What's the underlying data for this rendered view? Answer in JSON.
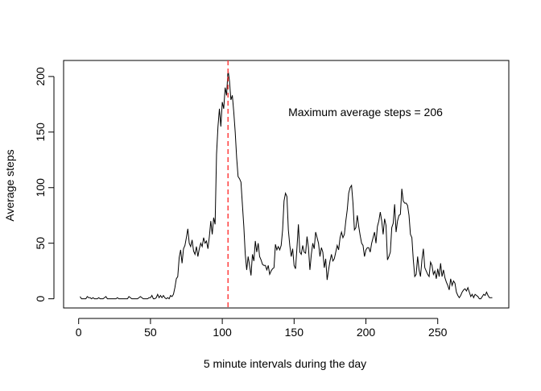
{
  "chart_data": {
    "type": "line",
    "x_label": "5 minute intervals during the day",
    "y_label": "Average steps",
    "annotation": "Maximum average steps = 206",
    "color": "#000000",
    "vline": {
      "x": 104,
      "color": "#ff4040"
    },
    "xlim": [
      -10.48,
      299.48
    ],
    "xticks": [
      0,
      50,
      100,
      150,
      200,
      250
    ],
    "ylim": [
      -8.25,
      214.42
    ],
    "yticks": [
      0,
      50,
      100,
      150,
      200
    ],
    "grid": false,
    "x": [
      1,
      2,
      3,
      4,
      5,
      6,
      7,
      8,
      9,
      10,
      11,
      12,
      13,
      14,
      15,
      16,
      17,
      18,
      19,
      20,
      21,
      22,
      23,
      24,
      25,
      26,
      27,
      28,
      29,
      30,
      31,
      32,
      33,
      34,
      35,
      36,
      37,
      38,
      39,
      40,
      41,
      42,
      43,
      44,
      45,
      46,
      47,
      48,
      49,
      50,
      51,
      52,
      53,
      54,
      55,
      56,
      57,
      58,
      59,
      60,
      61,
      62,
      63,
      64,
      65,
      66,
      67,
      68,
      69,
      70,
      71,
      72,
      73,
      74,
      75,
      76,
      77,
      78,
      79,
      80,
      81,
      82,
      83,
      84,
      85,
      86,
      87,
      88,
      89,
      90,
      91,
      92,
      93,
      94,
      95,
      96,
      97,
      98,
      99,
      100,
      101,
      102,
      103,
      104,
      105,
      106,
      107,
      108,
      109,
      110,
      111,
      112,
      113,
      114,
      115,
      116,
      117,
      118,
      119,
      120,
      121,
      122,
      123,
      124,
      125,
      126,
      127,
      128,
      129,
      130,
      131,
      132,
      133,
      134,
      135,
      136,
      137,
      138,
      139,
      140,
      141,
      142,
      143,
      144,
      145,
      146,
      147,
      148,
      149,
      150,
      151,
      152,
      153,
      154,
      155,
      156,
      157,
      158,
      159,
      160,
      161,
      162,
      163,
      164,
      165,
      166,
      167,
      168,
      169,
      170,
      171,
      172,
      173,
      174,
      175,
      176,
      177,
      178,
      179,
      180,
      181,
      182,
      183,
      184,
      185,
      186,
      187,
      188,
      189,
      190,
      191,
      192,
      193,
      194,
      195,
      196,
      197,
      198,
      199,
      200,
      201,
      202,
      203,
      204,
      205,
      206,
      207,
      208,
      209,
      210,
      211,
      212,
      213,
      214,
      215,
      216,
      217,
      218,
      219,
      220,
      221,
      222,
      223,
      224,
      225,
      226,
      227,
      228,
      229,
      230,
      231,
      232,
      233,
      234,
      235,
      236,
      237,
      238,
      239,
      240,
      241,
      242,
      243,
      244,
      245,
      246,
      247,
      248,
      249,
      250,
      251,
      252,
      253,
      254,
      255,
      256,
      257,
      258,
      259,
      260,
      261,
      262,
      263,
      264,
      265,
      266,
      267,
      268,
      269,
      270,
      271,
      272,
      273,
      274,
      275,
      276,
      277,
      278,
      279,
      280,
      281,
      282,
      283,
      284,
      285,
      286,
      287,
      288
    ],
    "values": [
      2,
      0,
      0,
      0,
      0,
      2,
      1,
      1,
      0,
      1,
      0,
      0,
      0,
      1,
      0,
      0,
      0,
      1,
      2,
      0,
      0,
      0,
      0,
      0,
      0,
      0,
      1,
      0,
      0,
      0,
      0,
      0,
      0,
      0,
      2,
      1,
      0,
      0,
      0,
      0,
      0,
      1,
      2,
      1,
      0,
      0,
      0,
      0,
      1,
      1,
      3,
      0,
      0,
      1,
      4,
      1,
      3,
      1,
      3,
      1,
      0,
      1,
      0,
      3,
      2,
      4,
      10,
      18,
      20,
      37,
      44,
      32,
      45,
      48,
      55,
      63,
      50,
      47,
      53,
      43,
      40,
      47,
      38,
      45,
      50,
      47,
      55,
      50,
      52,
      45,
      56,
      70,
      58,
      73,
      67,
      130,
      155,
      171,
      155,
      177,
      171,
      190,
      183,
      206,
      196,
      179,
      183,
      168,
      150,
      127,
      110,
      108,
      105,
      85,
      65,
      40,
      26,
      38,
      30,
      21,
      40,
      34,
      52,
      42,
      50,
      38,
      35,
      31,
      30,
      30,
      26,
      30,
      22,
      25,
      27,
      28,
      49,
      44,
      47,
      44,
      48,
      62,
      88,
      95,
      92,
      62,
      48,
      38,
      45,
      30,
      27,
      46,
      67,
      42,
      40,
      48,
      42,
      41,
      56,
      46,
      26,
      40,
      50,
      45,
      60,
      55,
      50,
      38,
      46,
      42,
      28,
      36,
      17,
      26,
      34,
      40,
      34,
      36,
      42,
      48,
      44,
      55,
      60,
      55,
      58,
      70,
      80,
      95,
      100,
      102,
      86,
      62,
      64,
      75,
      65,
      57,
      50,
      48,
      38,
      44,
      46,
      46,
      42,
      50,
      55,
      60,
      50,
      65,
      70,
      78,
      70,
      58,
      72,
      66,
      35,
      38,
      42,
      64,
      68,
      85,
      60,
      70,
      75,
      76,
      99,
      88,
      86,
      86,
      84,
      75,
      58,
      55,
      35,
      20,
      22,
      38,
      26,
      20,
      35,
      45,
      28,
      25,
      22,
      20,
      33,
      30,
      22,
      25,
      18,
      27,
      20,
      32,
      20,
      26,
      19,
      15,
      12,
      8,
      18,
      12,
      16,
      14,
      6,
      3,
      1,
      3,
      6,
      8,
      9,
      7,
      10,
      6,
      2,
      4,
      1,
      4,
      3,
      2,
      0,
      0,
      2,
      4,
      3,
      6,
      3,
      1,
      1,
      1
    ]
  }
}
